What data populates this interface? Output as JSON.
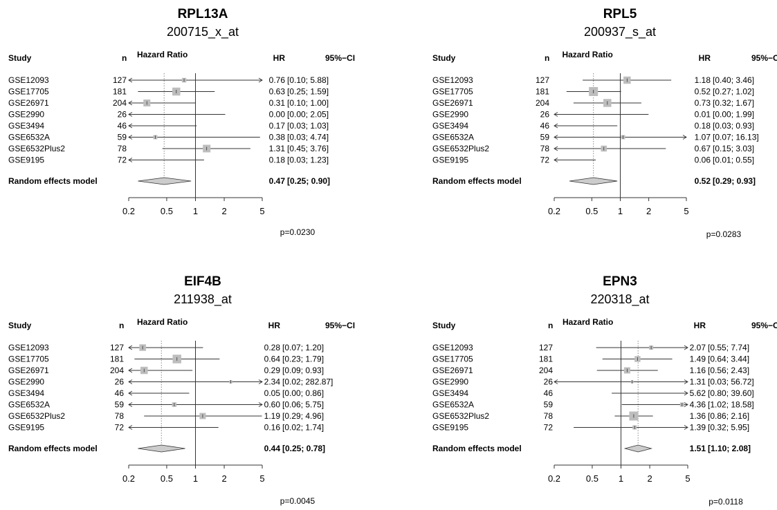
{
  "column_headers": {
    "study": "Study",
    "n": "n",
    "hazard_ratio": "Hazard Ratio",
    "hr": "HR",
    "ci": "95%−CI"
  },
  "model_label": "Random effects model",
  "colors": {
    "box": "#bdbdbd",
    "diamond": "#cccccc",
    "line": "#333333"
  },
  "chart_data": [
    {
      "type": "forest",
      "title": "RPL13A",
      "subtitle": "200715_x_at",
      "axis_ticks": [
        0.2,
        0.5,
        1,
        2,
        5
      ],
      "axis_tick_labels": [
        "0.2",
        "0.5",
        "1",
        "2",
        "5"
      ],
      "log_scale": true,
      "pvalue": "p=0.0230",
      "studies": [
        {
          "name": "GSE12093",
          "n": "127",
          "hr": 0.76,
          "lo": 0.1,
          "hi": 5.88,
          "w": 0.35,
          "hr_label": "0.76",
          "ci_label": "[0.10; 5.88]"
        },
        {
          "name": "GSE17705",
          "n": "181",
          "hr": 0.63,
          "lo": 0.25,
          "hi": 1.59,
          "w": 0.85,
          "hr_label": "0.63",
          "ci_label": "[0.25; 1.59]"
        },
        {
          "name": "GSE26971",
          "n": "204",
          "hr": 0.31,
          "lo": 0.1,
          "hi": 1.0,
          "w": 0.7,
          "hr_label": "0.31",
          "ci_label": "[0.10; 1.00]"
        },
        {
          "name": "GSE2990",
          "n": "26",
          "hr": 0.0,
          "lo": 0.0,
          "hi": 2.05,
          "w": 0,
          "hr_label": "0.00",
          "ci_label": "[0.00; 2.05]"
        },
        {
          "name": "GSE3494",
          "n": "46",
          "hr": 0.17,
          "lo": 0.03,
          "hi": 1.03,
          "w": 0,
          "hr_label": "0.17",
          "ci_label": "[0.03; 1.03]"
        },
        {
          "name": "GSE6532A",
          "n": "59",
          "hr": 0.38,
          "lo": 0.03,
          "hi": 4.74,
          "w": 0.3,
          "hr_label": "0.38",
          "ci_label": "[0.03; 4.74]"
        },
        {
          "name": "GSE6532Plus2",
          "n": "78",
          "hr": 1.31,
          "lo": 0.45,
          "hi": 3.76,
          "w": 0.8,
          "hr_label": "1.31",
          "ci_label": "[0.45; 3.76]"
        },
        {
          "name": "GSE9195",
          "n": "72",
          "hr": 0.18,
          "lo": 0.03,
          "hi": 1.23,
          "w": 0,
          "hr_label": "0.18",
          "ci_label": "[0.03; 1.23]"
        }
      ],
      "model": {
        "hr": 0.47,
        "lo": 0.25,
        "hi": 0.9,
        "hr_label": "0.47",
        "ci_label": "[0.25; 0.90]"
      }
    },
    {
      "type": "forest",
      "title": "RPL5",
      "subtitle": "200937_s_at",
      "axis_ticks": [
        0.2,
        0.5,
        1,
        2,
        5
      ],
      "axis_tick_labels": [
        "0.2",
        "0.5",
        "1",
        "2",
        "5"
      ],
      "log_scale": true,
      "pvalue": "p=0.0283",
      "studies": [
        {
          "name": "GSE12093",
          "n": "127",
          "hr": 1.18,
          "lo": 0.4,
          "hi": 3.46,
          "w": 0.75,
          "hr_label": "1.18",
          "ci_label": "[0.40; 3.46]"
        },
        {
          "name": "GSE17705",
          "n": "181",
          "hr": 0.52,
          "lo": 0.27,
          "hi": 1.02,
          "w": 1.0,
          "hr_label": "0.52",
          "ci_label": "[0.27; 1.02]"
        },
        {
          "name": "GSE26971",
          "n": "204",
          "hr": 0.73,
          "lo": 0.32,
          "hi": 1.67,
          "w": 0.85,
          "hr_label": "0.73",
          "ci_label": "[0.32; 1.67]"
        },
        {
          "name": "GSE2990",
          "n": "26",
          "hr": 0.01,
          "lo": 0.0,
          "hi": 1.99,
          "w": 0,
          "hr_label": "0.01",
          "ci_label": "[0.00; 1.99]"
        },
        {
          "name": "GSE3494",
          "n": "46",
          "hr": 0.18,
          "lo": 0.03,
          "hi": 0.93,
          "w": 0,
          "hr_label": "0.18",
          "ci_label": "[0.03; 0.93]"
        },
        {
          "name": "GSE6532A",
          "n": "59",
          "hr": 1.07,
          "lo": 0.07,
          "hi": 16.13,
          "w": 0.3,
          "hr_label": "1.07",
          "ci_label": "[0.07; 16.13]"
        },
        {
          "name": "GSE6532Plus2",
          "n": "78",
          "hr": 0.67,
          "lo": 0.15,
          "hi": 3.03,
          "w": 0.55,
          "hr_label": "0.67",
          "ci_label": "[0.15; 3.03]"
        },
        {
          "name": "GSE9195",
          "n": "72",
          "hr": 0.06,
          "lo": 0.01,
          "hi": 0.55,
          "w": 0,
          "hr_label": "0.06",
          "ci_label": "[0.01; 0.55]"
        }
      ],
      "model": {
        "hr": 0.52,
        "lo": 0.29,
        "hi": 0.93,
        "hr_label": "0.52",
        "ci_label": "[0.29; 0.93]"
      }
    },
    {
      "type": "forest",
      "title": "EIF4B",
      "subtitle": "211938_at",
      "axis_ticks": [
        0.2,
        0.5,
        1,
        2,
        5
      ],
      "axis_tick_labels": [
        "0.2",
        "0.5",
        "1",
        "2",
        "5"
      ],
      "log_scale": true,
      "pvalue": "p=0.0045",
      "studies": [
        {
          "name": "GSE12093",
          "n": "127",
          "hr": 0.28,
          "lo": 0.07,
          "hi": 1.2,
          "w": 0.65,
          "hr_label": "0.28",
          "ci_label": "[0.07; 1.20]"
        },
        {
          "name": "GSE17705",
          "n": "181",
          "hr": 0.64,
          "lo": 0.23,
          "hi": 1.79,
          "w": 0.95,
          "hr_label": "0.64",
          "ci_label": "[0.23; 1.79]"
        },
        {
          "name": "GSE26971",
          "n": "204",
          "hr": 0.29,
          "lo": 0.09,
          "hi": 0.93,
          "w": 0.75,
          "hr_label": "0.29",
          "ci_label": "[0.09; 0.93]"
        },
        {
          "name": "GSE2990",
          "n": "26",
          "hr": 2.34,
          "lo": 0.02,
          "hi": 282.87,
          "w": 0.15,
          "hr_label": "2.34",
          "ci_label": "[0.02; 282.87]"
        },
        {
          "name": "GSE3494",
          "n": "46",
          "hr": 0.05,
          "lo": 0.0,
          "hi": 0.86,
          "w": 0,
          "hr_label": "0.05",
          "ci_label": "[0.00; 0.86]"
        },
        {
          "name": "GSE6532A",
          "n": "59",
          "hr": 0.6,
          "lo": 0.06,
          "hi": 5.75,
          "w": 0.35,
          "hr_label": "0.60",
          "ci_label": "[0.06; 5.75]"
        },
        {
          "name": "GSE6532Plus2",
          "n": "78",
          "hr": 1.19,
          "lo": 0.29,
          "hi": 4.96,
          "w": 0.6,
          "hr_label": "1.19",
          "ci_label": "[0.29; 4.96]"
        },
        {
          "name": "GSE9195",
          "n": "72",
          "hr": 0.16,
          "lo": 0.02,
          "hi": 1.74,
          "w": 0,
          "hr_label": "0.16",
          "ci_label": "[0.02; 1.74]"
        }
      ],
      "model": {
        "hr": 0.44,
        "lo": 0.25,
        "hi": 0.78,
        "hr_label": "0.44",
        "ci_label": "[0.25;  0.78]"
      }
    },
    {
      "type": "forest",
      "title": "EPN3",
      "subtitle": "220318_at",
      "axis_ticks": [
        0.2,
        0.5,
        1,
        2,
        5
      ],
      "axis_tick_labels": [
        "0.2",
        "0.5",
        "1",
        "2",
        "5"
      ],
      "log_scale": true,
      "pvalue": "p=0.0118",
      "studies": [
        {
          "name": "GSE12093",
          "n": "127",
          "hr": 2.07,
          "lo": 0.55,
          "hi": 7.74,
          "w": 0.3,
          "hr_label": "2.07",
          "ci_label": "[0.55; 7.74]"
        },
        {
          "name": "GSE17705",
          "n": "181",
          "hr": 1.49,
          "lo": 0.64,
          "hi": 3.44,
          "w": 0.55,
          "hr_label": "1.49",
          "ci_label": "[0.64; 3.44]"
        },
        {
          "name": "GSE26971",
          "n": "204",
          "hr": 1.16,
          "lo": 0.56,
          "hi": 2.43,
          "w": 0.6,
          "hr_label": "1.16",
          "ci_label": "[0.56; 2.43]"
        },
        {
          "name": "GSE2990",
          "n": "26",
          "hr": 1.31,
          "lo": 0.03,
          "hi": 56.72,
          "w": 0.1,
          "hr_label": "1.31",
          "ci_label": "[0.03; 56.72]"
        },
        {
          "name": "GSE3494",
          "n": "46",
          "hr": 5.62,
          "lo": 0.8,
          "hi": 39.6,
          "w": 0,
          "hr_label": "5.62",
          "ci_label": "[0.80; 39.60]"
        },
        {
          "name": "GSE6532A",
          "n": "59",
          "hr": 4.36,
          "lo": 1.02,
          "hi": 18.58,
          "w": 0.3,
          "hr_label": "4.36",
          "ci_label": "[1.02; 18.58]"
        },
        {
          "name": "GSE6532Plus2",
          "n": "78",
          "hr": 1.36,
          "lo": 0.86,
          "hi": 2.16,
          "w": 1.0,
          "hr_label": "1.36",
          "ci_label": "[0.86; 2.16]"
        },
        {
          "name": "GSE9195",
          "n": "72",
          "hr": 1.39,
          "lo": 0.32,
          "hi": 5.95,
          "w": 0.3,
          "hr_label": "1.39",
          "ci_label": "[0.32; 5.95]"
        }
      ],
      "model": {
        "hr": 1.51,
        "lo": 1.1,
        "hi": 2.08,
        "hr_label": "1.51",
        "ci_label": "[1.10; 2.08]"
      }
    }
  ]
}
